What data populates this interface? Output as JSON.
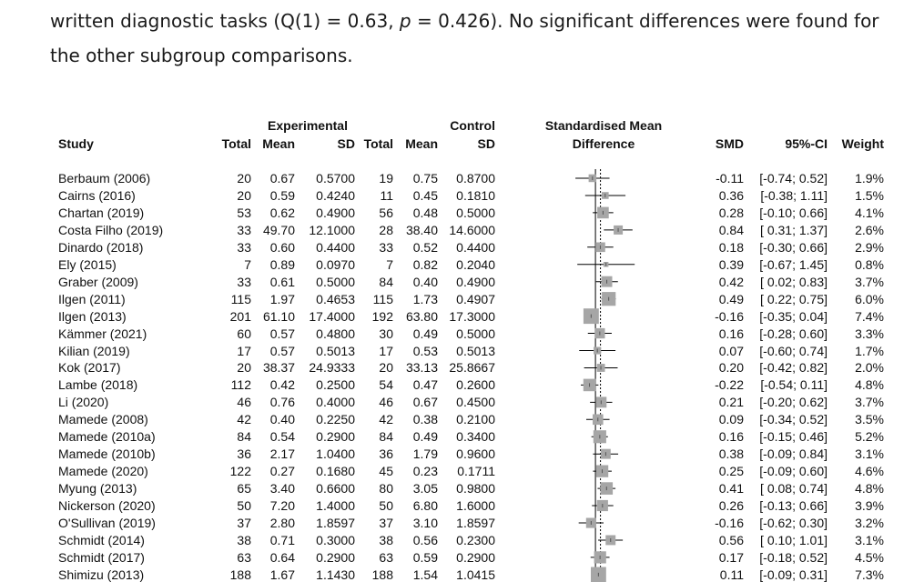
{
  "prose": {
    "line1_pre": "written diagnostic tasks (Q(1) = 0.63, ",
    "line1_p": "p",
    "line1_post": " = 0.426). No significant differences were found for",
    "line2": "the other subgroup comparisons."
  },
  "table": {
    "headers": {
      "study": "Study",
      "exp_group": "Experimental",
      "ctrl_group": "Control",
      "total_e": "Total",
      "mean_e": "Mean",
      "sd_e": "SD",
      "total_c": "Total",
      "mean_c": "Mean",
      "sd_c": "SD",
      "smd_title_1": "Standardised Mean",
      "smd_title_2": "Difference",
      "smd": "SMD",
      "ci": "95%-CI",
      "weight": "Weight"
    },
    "rows": [
      {
        "study": "Berbaum (2006)",
        "total_e": "20",
        "mean_e": "0.67",
        "sd_e": "0.5700",
        "total_c": "19",
        "mean_c": "0.75",
        "sd_c": "0.8700",
        "smd": "-0.11",
        "ci": "[-0.74; 0.52]",
        "weight": "1.9%"
      },
      {
        "study": "Cairns (2016)",
        "total_e": "20",
        "mean_e": "0.59",
        "sd_e": "0.4240",
        "total_c": "11",
        "mean_c": "0.45",
        "sd_c": "0.1810",
        "smd": "0.36",
        "ci": "[-0.38; 1.11]",
        "weight": "1.5%"
      },
      {
        "study": "Chartan (2019)",
        "total_e": "53",
        "mean_e": "0.62",
        "sd_e": "0.4900",
        "total_c": "56",
        "mean_c": "0.48",
        "sd_c": "0.5000",
        "smd": "0.28",
        "ci": "[-0.10; 0.66]",
        "weight": "4.1%"
      },
      {
        "study": "Costa Filho (2019)",
        "total_e": "33",
        "mean_e": "49.70",
        "sd_e": "12.1000",
        "total_c": "28",
        "mean_c": "38.40",
        "sd_c": "14.6000",
        "smd": "0.84",
        "ci": "[ 0.31; 1.37]",
        "weight": "2.6%"
      },
      {
        "study": "Dinardo (2018)",
        "total_e": "33",
        "mean_e": "0.60",
        "sd_e": "0.4400",
        "total_c": "33",
        "mean_c": "0.52",
        "sd_c": "0.4400",
        "smd": "0.18",
        "ci": "[-0.30; 0.66]",
        "weight": "2.9%"
      },
      {
        "study": "Ely (2015)",
        "total_e": "7",
        "mean_e": "0.89",
        "sd_e": "0.0970",
        "total_c": "7",
        "mean_c": "0.82",
        "sd_c": "0.2040",
        "smd": "0.39",
        "ci": "[-0.67; 1.45]",
        "weight": "0.8%"
      },
      {
        "study": "Graber (2009)",
        "total_e": "33",
        "mean_e": "0.61",
        "sd_e": "0.5000",
        "total_c": "84",
        "mean_c": "0.40",
        "sd_c": "0.4900",
        "smd": "0.42",
        "ci": "[ 0.02; 0.83]",
        "weight": "3.7%"
      },
      {
        "study": "Ilgen (2011)",
        "total_e": "115",
        "mean_e": "1.97",
        "sd_e": "0.4653",
        "total_c": "115",
        "mean_c": "1.73",
        "sd_c": "0.4907",
        "smd": "0.49",
        "ci": "[ 0.22; 0.75]",
        "weight": "6.0%"
      },
      {
        "study": "Ilgen (2013)",
        "total_e": "201",
        "mean_e": "61.10",
        "sd_e": "17.4000",
        "total_c": "192",
        "mean_c": "63.80",
        "sd_c": "17.3000",
        "smd": "-0.16",
        "ci": "[-0.35; 0.04]",
        "weight": "7.4%"
      },
      {
        "study": "Kämmer (2021)",
        "total_e": "60",
        "mean_e": "0.57",
        "sd_e": "0.4800",
        "total_c": "30",
        "mean_c": "0.49",
        "sd_c": "0.5000",
        "smd": "0.16",
        "ci": "[-0.28; 0.60]",
        "weight": "3.3%"
      },
      {
        "study": "Kilian (2019)",
        "total_e": "17",
        "mean_e": "0.57",
        "sd_e": "0.5013",
        "total_c": "17",
        "mean_c": "0.53",
        "sd_c": "0.5013",
        "smd": "0.07",
        "ci": "[-0.60; 0.74]",
        "weight": "1.7%"
      },
      {
        "study": "Kok (2017)",
        "total_e": "20",
        "mean_e": "38.37",
        "sd_e": "24.9333",
        "total_c": "20",
        "mean_c": "33.13",
        "sd_c": "25.8667",
        "smd": "0.20",
        "ci": "[-0.42; 0.82]",
        "weight": "2.0%"
      },
      {
        "study": "Lambe (2018)",
        "total_e": "112",
        "mean_e": "0.42",
        "sd_e": "0.2500",
        "total_c": "54",
        "mean_c": "0.47",
        "sd_c": "0.2600",
        "smd": "-0.22",
        "ci": "[-0.54; 0.11]",
        "weight": "4.8%"
      },
      {
        "study": "Li (2020)",
        "total_e": "46",
        "mean_e": "0.76",
        "sd_e": "0.4000",
        "total_c": "46",
        "mean_c": "0.67",
        "sd_c": "0.4500",
        "smd": "0.21",
        "ci": "[-0.20; 0.62]",
        "weight": "3.7%"
      },
      {
        "study": "Mamede (2008)",
        "total_e": "42",
        "mean_e": "0.40",
        "sd_e": "0.2250",
        "total_c": "42",
        "mean_c": "0.38",
        "sd_c": "0.2100",
        "smd": "0.09",
        "ci": "[-0.34; 0.52]",
        "weight": "3.5%"
      },
      {
        "study": "Mamede (2010a)",
        "total_e": "84",
        "mean_e": "0.54",
        "sd_e": "0.2900",
        "total_c": "84",
        "mean_c": "0.49",
        "sd_c": "0.3400",
        "smd": "0.16",
        "ci": "[-0.15; 0.46]",
        "weight": "5.2%"
      },
      {
        "study": "Mamede (2010b)",
        "total_e": "36",
        "mean_e": "2.17",
        "sd_e": "1.0400",
        "total_c": "36",
        "mean_c": "1.79",
        "sd_c": "0.9600",
        "smd": "0.38",
        "ci": "[-0.09; 0.84]",
        "weight": "3.1%"
      },
      {
        "study": "Mamede (2020)",
        "total_e": "122",
        "mean_e": "0.27",
        "sd_e": "0.1680",
        "total_c": "45",
        "mean_c": "0.23",
        "sd_c": "0.1711",
        "smd": "0.25",
        "ci": "[-0.09; 0.60]",
        "weight": "4.6%"
      },
      {
        "study": "Myung (2013)",
        "total_e": "65",
        "mean_e": "3.40",
        "sd_e": "0.6600",
        "total_c": "80",
        "mean_c": "3.05",
        "sd_c": "0.9800",
        "smd": "0.41",
        "ci": "[ 0.08; 0.74]",
        "weight": "4.8%"
      },
      {
        "study": "Nickerson (2020)",
        "total_e": "50",
        "mean_e": "7.20",
        "sd_e": "1.4000",
        "total_c": "50",
        "mean_c": "6.80",
        "sd_c": "1.6000",
        "smd": "0.26",
        "ci": "[-0.13; 0.66]",
        "weight": "3.9%"
      },
      {
        "study": "O'Sullivan (2019)",
        "total_e": "37",
        "mean_e": "2.80",
        "sd_e": "1.8597",
        "total_c": "37",
        "mean_c": "3.10",
        "sd_c": "1.8597",
        "smd": "-0.16",
        "ci": "[-0.62; 0.30]",
        "weight": "3.2%"
      },
      {
        "study": "Schmidt (2014)",
        "total_e": "38",
        "mean_e": "0.71",
        "sd_e": "0.3000",
        "total_c": "38",
        "mean_c": "0.56",
        "sd_c": "0.2300",
        "smd": "0.56",
        "ci": "[ 0.10; 1.01]",
        "weight": "3.1%"
      },
      {
        "study": "Schmidt (2017)",
        "total_e": "63",
        "mean_e": "0.64",
        "sd_e": "0.2900",
        "total_c": "63",
        "mean_c": "0.59",
        "sd_c": "0.2900",
        "smd": "0.17",
        "ci": "[-0.18; 0.52]",
        "weight": "4.5%"
      },
      {
        "study": "Shimizu (2013)",
        "total_e": "188",
        "mean_e": "1.67",
        "sd_e": "1.1430",
        "total_c": "188",
        "mean_c": "1.54",
        "sd_c": "1.0415",
        "smd": "0.11",
        "ci": "[-0.09; 0.31]",
        "weight": "7.3%"
      }
    ]
  },
  "chart_data": {
    "type": "scatter",
    "plot": "forest",
    "x_label": "",
    "xlim": [
      -1.45,
      1.78
    ],
    "null_line": 0,
    "pooled_estimate_line": 0.185,
    "points": [
      {
        "study": "Berbaum (2006)",
        "smd": -0.11,
        "lo": -0.74,
        "hi": 0.52,
        "weight": 1.9
      },
      {
        "study": "Cairns (2016)",
        "smd": 0.36,
        "lo": -0.38,
        "hi": 1.11,
        "weight": 1.5
      },
      {
        "study": "Chartan (2019)",
        "smd": 0.28,
        "lo": -0.1,
        "hi": 0.66,
        "weight": 4.1
      },
      {
        "study": "Costa Filho (2019)",
        "smd": 0.84,
        "lo": 0.31,
        "hi": 1.37,
        "weight": 2.6
      },
      {
        "study": "Dinardo (2018)",
        "smd": 0.18,
        "lo": -0.3,
        "hi": 0.66,
        "weight": 2.9
      },
      {
        "study": "Ely (2015)",
        "smd": 0.39,
        "lo": -0.67,
        "hi": 1.45,
        "weight": 0.8
      },
      {
        "study": "Graber (2009)",
        "smd": 0.42,
        "lo": 0.02,
        "hi": 0.83,
        "weight": 3.7
      },
      {
        "study": "Ilgen (2011)",
        "smd": 0.49,
        "lo": 0.22,
        "hi": 0.75,
        "weight": 6.0
      },
      {
        "study": "Ilgen (2013)",
        "smd": -0.16,
        "lo": -0.35,
        "hi": 0.04,
        "weight": 7.4
      },
      {
        "study": "Kämmer (2021)",
        "smd": 0.16,
        "lo": -0.28,
        "hi": 0.6,
        "weight": 3.3
      },
      {
        "study": "Kilian (2019)",
        "smd": 0.07,
        "lo": -0.6,
        "hi": 0.74,
        "weight": 1.7
      },
      {
        "study": "Kok (2017)",
        "smd": 0.2,
        "lo": -0.42,
        "hi": 0.82,
        "weight": 2.0
      },
      {
        "study": "Lambe (2018)",
        "smd": -0.22,
        "lo": -0.54,
        "hi": 0.11,
        "weight": 4.8
      },
      {
        "study": "Li (2020)",
        "smd": 0.21,
        "lo": -0.2,
        "hi": 0.62,
        "weight": 3.7
      },
      {
        "study": "Mamede (2008)",
        "smd": 0.09,
        "lo": -0.34,
        "hi": 0.52,
        "weight": 3.5
      },
      {
        "study": "Mamede (2010a)",
        "smd": 0.16,
        "lo": -0.15,
        "hi": 0.46,
        "weight": 5.2
      },
      {
        "study": "Mamede (2010b)",
        "smd": 0.38,
        "lo": -0.09,
        "hi": 0.84,
        "weight": 3.1
      },
      {
        "study": "Mamede (2020)",
        "smd": 0.25,
        "lo": -0.09,
        "hi": 0.6,
        "weight": 4.6
      },
      {
        "study": "Myung (2013)",
        "smd": 0.41,
        "lo": 0.08,
        "hi": 0.74,
        "weight": 4.8
      },
      {
        "study": "Nickerson (2020)",
        "smd": 0.26,
        "lo": -0.13,
        "hi": 0.66,
        "weight": 3.9
      },
      {
        "study": "O'Sullivan (2019)",
        "smd": -0.16,
        "lo": -0.62,
        "hi": 0.3,
        "weight": 3.2
      },
      {
        "study": "Schmidt (2014)",
        "smd": 0.56,
        "lo": 0.1,
        "hi": 1.01,
        "weight": 3.1
      },
      {
        "study": "Schmidt (2017)",
        "smd": 0.17,
        "lo": -0.18,
        "hi": 0.52,
        "weight": 4.5
      },
      {
        "study": "Shimizu (2013)",
        "smd": 0.11,
        "lo": -0.09,
        "hi": 0.31,
        "weight": 7.3
      }
    ],
    "colors": {
      "box": "#a6a6a6",
      "line": "#000000"
    }
  }
}
